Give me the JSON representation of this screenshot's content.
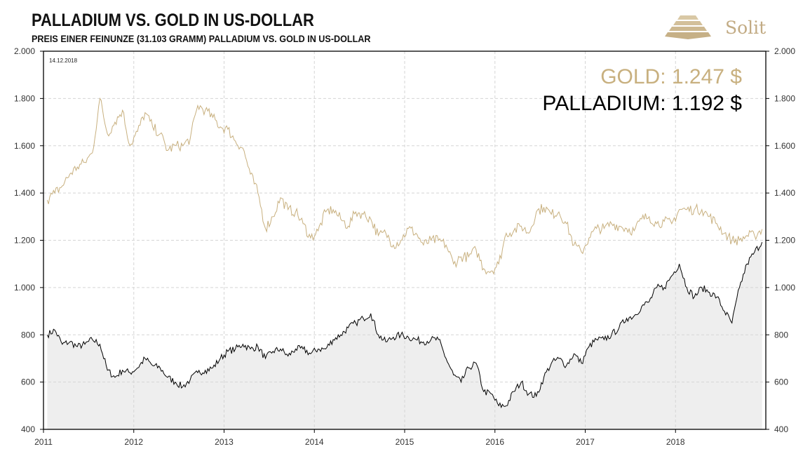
{
  "header": {
    "title": "PALLADIUM  VS. GOLD  IN  US-DOLLAR",
    "subtitle": "PREIS  EINER  FEINUNZE  (31.103 GRAMM)  PALLADIUM  VS. GOLD  IN  US-DOLLAR"
  },
  "logo": {
    "text": "Solit"
  },
  "date_label": "14.12.2018",
  "current_values": {
    "gold": "GOLD: 1.247 $",
    "palladium": "PALLADIUM: 1.192 $"
  },
  "colors": {
    "gold": "#c8b07f",
    "palladium": "#000000",
    "area": "#eeeeee"
  },
  "chart_data": {
    "type": "line",
    "title": "PALLADIUM VS. GOLD IN US-DOLLAR",
    "xlabel": "",
    "ylabel": "",
    "x_ticks": [
      "2011",
      "2012",
      "2013",
      "2014",
      "2015",
      "2016",
      "2017",
      "2018"
    ],
    "x_range": [
      2011,
      2019
    ],
    "y_ticks": [
      "400",
      "600",
      "800",
      "1.000",
      "1.200",
      "1.400",
      "1.600",
      "1.800",
      "2.000"
    ],
    "y_tick_values": [
      400,
      600,
      800,
      1000,
      1200,
      1400,
      1600,
      1800,
      2000
    ],
    "ylim": [
      400,
      2000
    ],
    "grid": true,
    "x_start": "2011-01",
    "frequency": "monthly",
    "series": [
      {
        "name": "Gold",
        "values": [
          1370,
          1400,
          1430,
          1480,
          1510,
          1530,
          1570,
          1800,
          1650,
          1700,
          1750,
          1600,
          1660,
          1740,
          1680,
          1650,
          1580,
          1600,
          1600,
          1630,
          1770,
          1750,
          1720,
          1680,
          1670,
          1620,
          1590,
          1480,
          1400,
          1250,
          1300,
          1380,
          1330,
          1320,
          1270,
          1210,
          1240,
          1320,
          1330,
          1290,
          1260,
          1320,
          1310,
          1290,
          1220,
          1230,
          1180,
          1200,
          1250,
          1230,
          1180,
          1200,
          1200,
          1180,
          1100,
          1130,
          1130,
          1160,
          1080,
          1070,
          1100,
          1230,
          1240,
          1260,
          1230,
          1320,
          1340,
          1310,
          1320,
          1270,
          1180,
          1150,
          1210,
          1250,
          1250,
          1270,
          1260,
          1250,
          1240,
          1290,
          1300,
          1270,
          1280,
          1270,
          1330,
          1330,
          1330,
          1330,
          1300,
          1270,
          1230,
          1200,
          1200,
          1220,
          1220,
          1247
        ]
      },
      {
        "name": "Palladium",
        "values": [
          800,
          820,
          760,
          770,
          750,
          760,
          780,
          760,
          650,
          620,
          650,
          640,
          660,
          700,
          670,
          660,
          620,
          600,
          580,
          610,
          640,
          650,
          660,
          700,
          730,
          740,
          760,
          740,
          750,
          700,
          730,
          740,
          710,
          740,
          740,
          720,
          740,
          740,
          780,
          800,
          830,
          850,
          870,
          890,
          800,
          770,
          790,
          800,
          790,
          780,
          770,
          780,
          780,
          700,
          630,
          600,
          660,
          680,
          560,
          550,
          500,
          500,
          560,
          600,
          550,
          540,
          620,
          680,
          700,
          670,
          720,
          680,
          750,
          780,
          780,
          800,
          830,
          870,
          880,
          920,
          940,
          1000,
          1000,
          1050,
          1100,
          1000,
          960,
          1000,
          980,
          960,
          900,
          850,
          1000,
          1100,
          1150,
          1192
        ]
      }
    ]
  }
}
